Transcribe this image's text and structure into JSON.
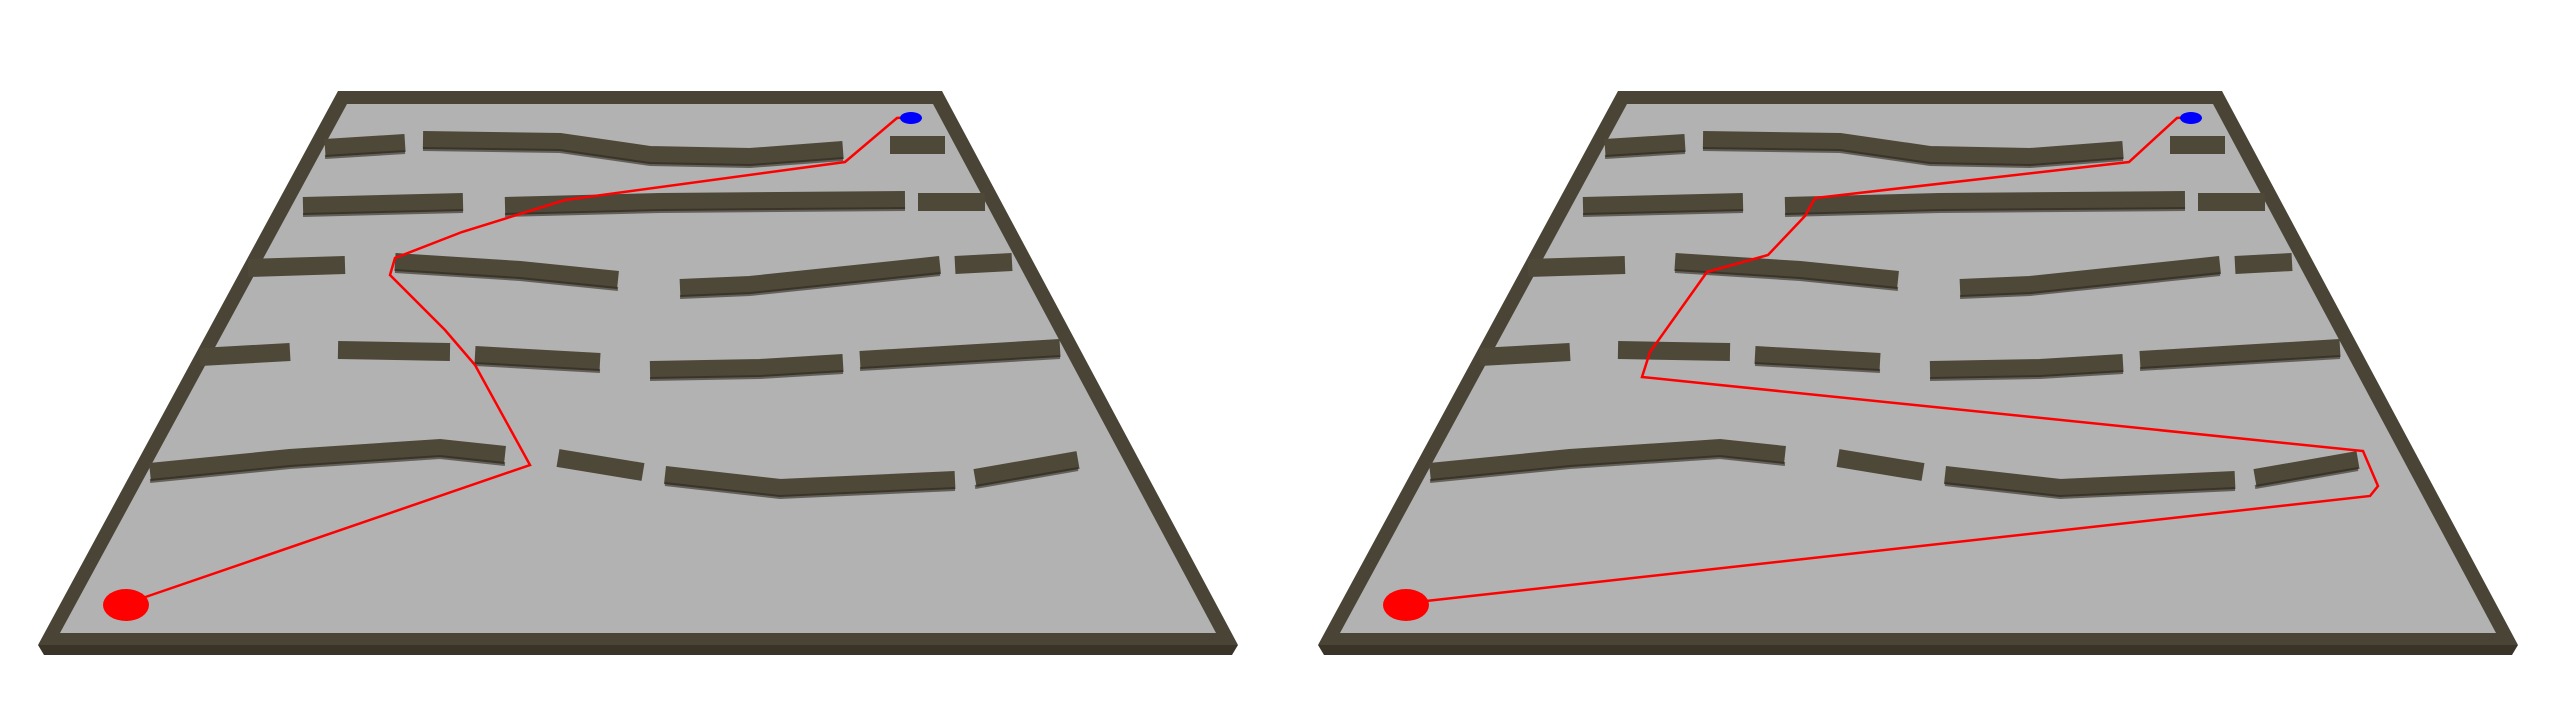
{
  "panels": [
    {
      "id": "left",
      "path_variant": "direct"
    },
    {
      "id": "right",
      "path_variant": "detour"
    }
  ],
  "colors": {
    "background": "#ffffff",
    "floor": "#b2b2b2",
    "border": "#4a4436",
    "wall_top": "#4e4839",
    "wall_side": "#3a3428",
    "path": "#ff0000",
    "start_marker": "#ff0000",
    "goal_marker": "#0000ff"
  },
  "markers": {
    "start": {
      "name": "start-marker",
      "color": "red"
    },
    "goal": {
      "name": "goal-marker",
      "color": "blue"
    }
  }
}
